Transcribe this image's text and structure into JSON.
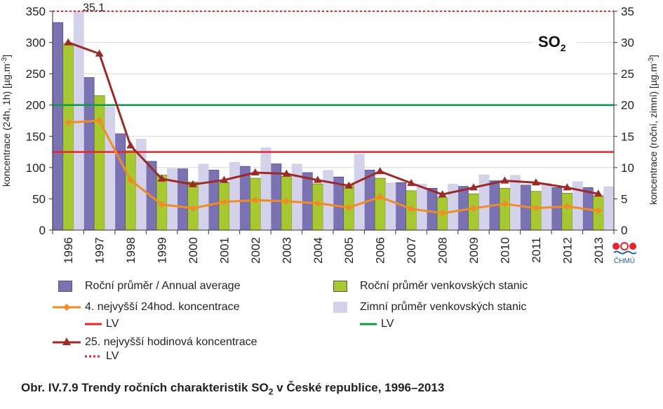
{
  "chart_data": {
    "type": "bar",
    "badge": "SO",
    "badge_sub": "2",
    "categories": [
      "1996",
      "1997",
      "1998",
      "1999",
      "2000",
      "2001",
      "2002",
      "2003",
      "2004",
      "2005",
      "2006",
      "2007",
      "2008",
      "2009",
      "2010",
      "2011",
      "2012",
      "2013"
    ],
    "ylabel_left": "koncentrace (24h, 1h) [µg.m",
    "ylabel_left_sup": "-3",
    "ylabel_left_end": "]",
    "ylabel_right": "koncentrace (roční, zimní) [µg.m",
    "ylabel_right_sup": "-3",
    "ylabel_right_end": "]",
    "ylim_left": [
      0,
      350
    ],
    "ylim_right": [
      0,
      35
    ],
    "yticks_left": [
      "0",
      "50",
      "100",
      "150",
      "200",
      "250",
      "300",
      "350"
    ],
    "yticks_right": [
      "0",
      "5",
      "10",
      "15",
      "20",
      "25",
      "30",
      "35"
    ],
    "series": [
      {
        "name": "Roční průměr / Annual average",
        "kind": "bar",
        "axis": "right",
        "color": "#7b72b4",
        "values": [
          33.2,
          24.4,
          15.4,
          11.0,
          9.8,
          9.6,
          10.2,
          10.6,
          9.2,
          8.5,
          9.6,
          7.6,
          6.7,
          7.0,
          7.9,
          7.2,
          6.8,
          6.8
        ]
      },
      {
        "name": "Roční průměr venkovských stanic",
        "kind": "bar",
        "axis": "right",
        "color": "#a8c832",
        "values": [
          29.8,
          21.5,
          12.7,
          8.8,
          7.7,
          7.6,
          8.3,
          8.6,
          7.4,
          7.3,
          8.3,
          6.3,
          5.2,
          5.8,
          6.7,
          6.2,
          5.9,
          5.5
        ]
      },
      {
        "name": "Zimní průměr venkovských stanic",
        "kind": "bar",
        "axis": "right",
        "color": "#d4d2ea",
        "values": [
          35.1,
          19.8,
          14.6,
          9.9,
          10.6,
          10.9,
          13.2,
          10.6,
          9.6,
          12.2,
          7.6,
          7.4,
          7.4,
          8.9,
          8.8,
          7.5,
          7.8,
          7.0
        ]
      },
      {
        "name": "4. nejvyšší 24hod. koncentrace",
        "kind": "line",
        "axis": "left",
        "color": "#f08c28",
        "marker": "diamond",
        "values": [
          172,
          175,
          80,
          41,
          35,
          45,
          48,
          46,
          43,
          36,
          53,
          34,
          27,
          35,
          42,
          35,
          38,
          31
        ]
      },
      {
        "name": "25. nejvyšší hodinová koncentrace",
        "kind": "line",
        "axis": "left",
        "color": "#9b2a28",
        "marker": "triangle",
        "values": [
          300,
          282,
          135,
          82,
          73,
          80,
          92,
          90,
          80,
          71,
          94,
          75,
          57,
          68,
          79,
          76,
          68,
          58
        ]
      }
    ],
    "limit_lines": [
      {
        "name": "LV",
        "axis": "left",
        "value": 125,
        "color": "#e8232a",
        "style": "solid"
      },
      {
        "name": "LV",
        "axis": "left",
        "value": 200,
        "color": "#0a9a4a",
        "style": "solid"
      },
      {
        "name": "LV",
        "axis": "left",
        "value": 350,
        "color": "#e8232a",
        "style": "dotted"
      }
    ],
    "annotation": {
      "text": "35.1",
      "category": "1997",
      "series": "Zimní průměr venkovských stanic"
    },
    "legend_placement": "bottom"
  },
  "legend": [
    {
      "label": "Roční průměr / Annual average",
      "type": "bar",
      "color": "#7b72b4"
    },
    {
      "label": "Roční průměr venkovských stanic",
      "type": "bar",
      "color": "#a8c832"
    },
    {
      "label": "4. nejvyšší 24hod. koncentrace",
      "type": "line-diamond",
      "color": "#f08c28"
    },
    {
      "label": "Zimní průměr venkovských stanic",
      "type": "bar",
      "color": "#d4d2ea"
    },
    {
      "label": "LV",
      "type": "line",
      "color": "#e8232a"
    },
    {
      "label": "LV",
      "type": "line",
      "color": "#0a9a4a"
    },
    {
      "label": "25. nejvyšší hodinová koncentrace",
      "type": "line-triangle",
      "color": "#9b2a28"
    },
    {
      "label": "LV",
      "type": "dotted",
      "color": "#e8232a"
    }
  ],
  "caption": {
    "prefix": "Obr. IV.7.9  Trendy ročních charakteristik SO",
    "sub": "2",
    "suffix": " v České republice, 1996–2013"
  },
  "logo": {
    "text": "ČHMÚ",
    "icon": "chmu-logo-icon"
  }
}
